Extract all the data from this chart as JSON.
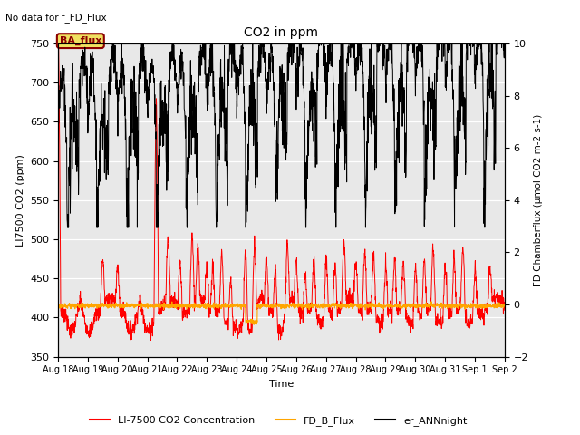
{
  "title": "CO2 in ppm",
  "top_left_text": "No data for f_FD_Flux",
  "ylabel_left": "LI7500 CO2 (ppm)",
  "ylabel_right": "FD Chamberflux (μmol CO2 m-2 s-1)",
  "xlabel": "Time",
  "ylim_left": [
    350,
    750
  ],
  "ylim_right": [
    -2,
    10
  ],
  "background_color": "#e8e8e8",
  "annotation_text": "BA_flux",
  "annotation_color": "#8B0000",
  "annotation_bg": "#f0e060",
  "legend_labels": [
    "LI-7500 CO2 Concentration",
    "FD_B_Flux",
    "er_ANNnight"
  ],
  "legend_colors": [
    "red",
    "orange",
    "black"
  ],
  "x_tick_labels": [
    "Aug 18",
    "Aug 19",
    "Aug 20",
    "Aug 21",
    "Aug 22",
    "Aug 23",
    "Aug 24",
    "Aug 25",
    "Aug 26",
    "Aug 27",
    "Aug 28",
    "Aug 29",
    "Aug 30",
    "Aug 31",
    "Sep 1",
    "Sep 2"
  ],
  "num_days": 15,
  "points_per_day": 144,
  "left_yticks": [
    350,
    400,
    450,
    500,
    550,
    600,
    650,
    700,
    750
  ],
  "right_yticks": [
    -2,
    0,
    2,
    4,
    6,
    8,
    10
  ]
}
